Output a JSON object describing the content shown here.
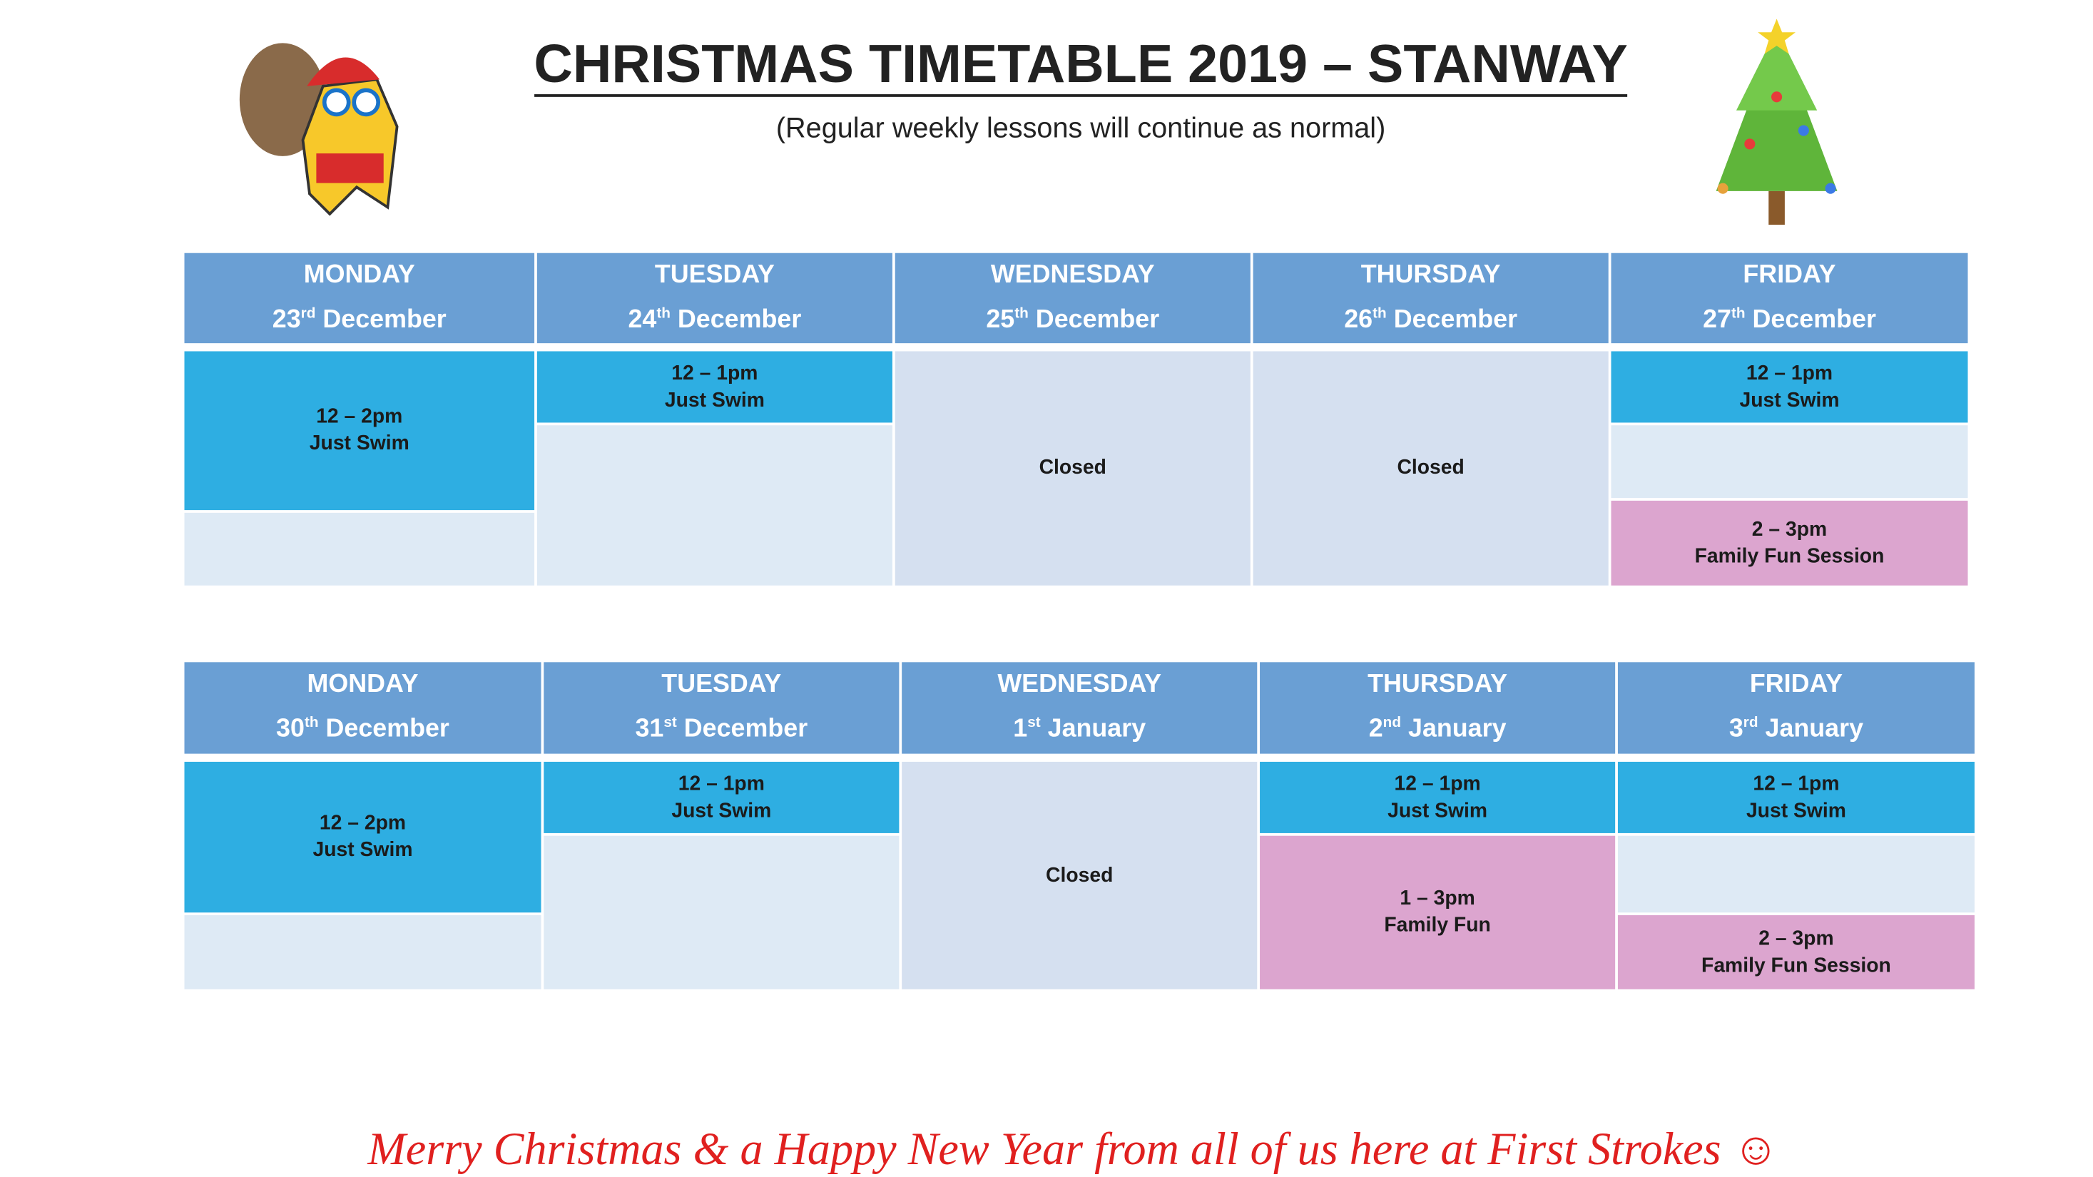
{
  "header": {
    "title": "CHRISTMAS TIMETABLE 2019 – STANWAY",
    "subtitle": "(Regular weekly lessons will continue as normal)"
  },
  "weeks": [
    {
      "days": [
        {
          "day": "MONDAY",
          "date": "23",
          "suffix": "rd",
          "month": "December",
          "cells": [
            {
              "lines": [
                "12 – 2pm",
                "Just Swim"
              ],
              "color": "#2eaee2"
            }
          ]
        },
        {
          "day": "TUESDAY",
          "date": "24",
          "suffix": "th",
          "month": "December",
          "cells": [
            {
              "lines": [
                "12 – 1pm",
                "Just Swim"
              ],
              "color": "#2eaee2"
            }
          ]
        },
        {
          "day": "WEDNESDAY",
          "date": "25",
          "suffix": "th",
          "month": "December",
          "cells": [
            {
              "lines": [
                "Closed"
              ],
              "color": "#d5e0f0"
            }
          ]
        },
        {
          "day": "THURSDAY",
          "date": "26",
          "suffix": "th",
          "month": "December",
          "cells": [
            {
              "lines": [
                "Closed"
              ],
              "color": "#d5e0f0"
            }
          ]
        },
        {
          "day": "FRIDAY",
          "date": "27",
          "suffix": "th",
          "month": "December",
          "cells": [
            {
              "lines": [
                "12 – 1pm",
                "Just Swim"
              ],
              "color": "#2eaee2"
            },
            {
              "lines": [
                "2 – 3pm",
                "Family Fun Session"
              ],
              "color": "#dca5cf"
            }
          ]
        }
      ]
    },
    {
      "days": [
        {
          "day": "MONDAY",
          "date": "30",
          "suffix": "th",
          "month": "December",
          "cells": [
            {
              "lines": [
                "12 – 2pm",
                "Just Swim"
              ],
              "color": "#2eaee2"
            }
          ]
        },
        {
          "day": "TUESDAY",
          "date": "31",
          "suffix": "st",
          "month": "December",
          "cells": [
            {
              "lines": [
                "12 – 1pm",
                "Just Swim"
              ],
              "color": "#2eaee2"
            }
          ]
        },
        {
          "day": "WEDNESDAY",
          "date": "1",
          "suffix": "st",
          "month": "January",
          "cells": [
            {
              "lines": [
                "Closed"
              ],
              "color": "#d5e0f0"
            }
          ]
        },
        {
          "day": "THURSDAY",
          "date": "2",
          "suffix": "nd",
          "month": "January",
          "cells": [
            {
              "lines": [
                "12 – 1pm",
                "Just Swim"
              ],
              "color": "#2eaee2"
            },
            {
              "lines": [
                "1 – 3pm",
                "Family Fun"
              ],
              "color": "#dca5cf"
            }
          ]
        },
        {
          "day": "FRIDAY",
          "date": "3",
          "suffix": "rd",
          "month": "January",
          "cells": [
            {
              "lines": [
                "12 – 1pm",
                "Just Swim"
              ],
              "color": "#2eaee2"
            },
            {
              "lines": [
                "2 – 3pm",
                "Family Fun Session"
              ],
              "color": "#dca5cf"
            }
          ]
        }
      ]
    }
  ],
  "footer": "Merry Christmas & a Happy New Year from all of us here at First Strokes ☺"
}
